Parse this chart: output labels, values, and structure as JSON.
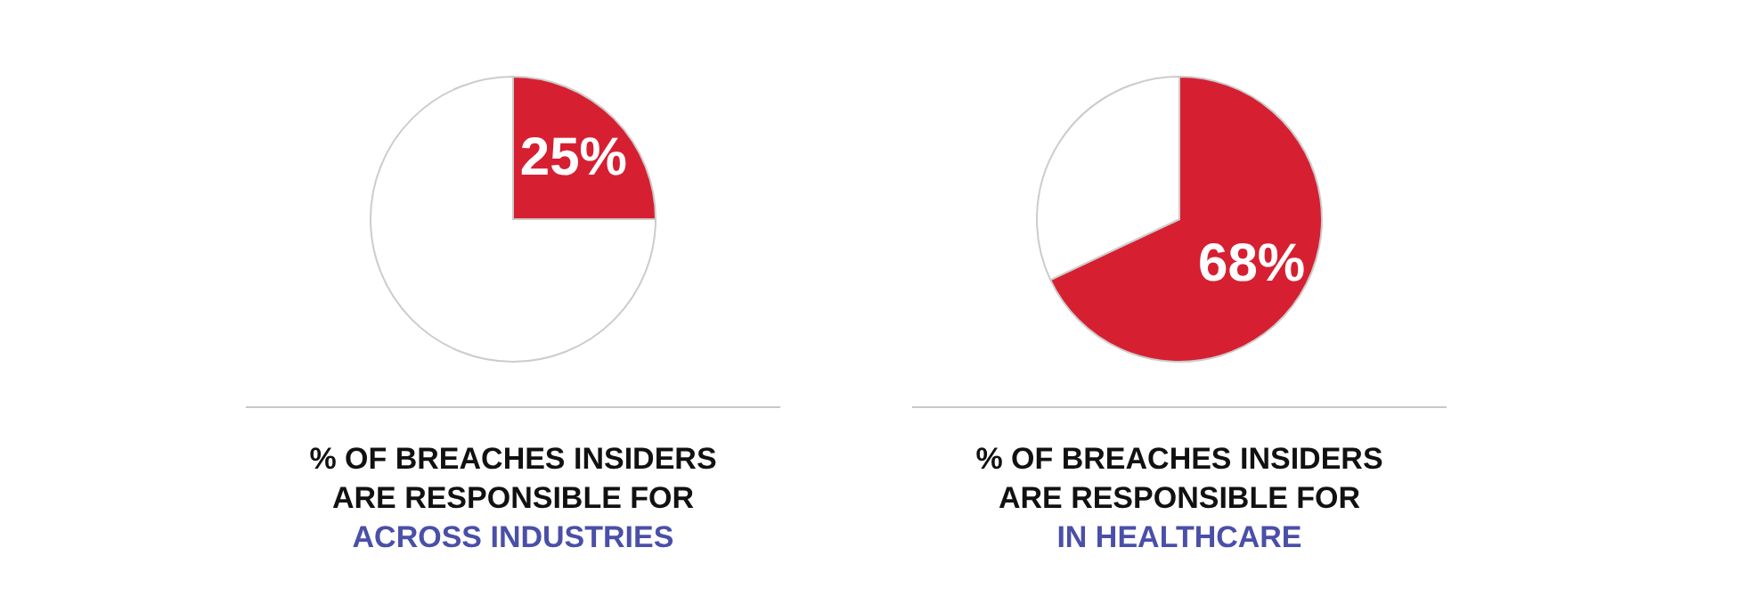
{
  "chart_data": [
    {
      "type": "pie",
      "categories": [
        null,
        null
      ],
      "values": [
        25,
        75
      ],
      "colors": [
        "#d62032",
        "#ffffff"
      ],
      "value_labels": [
        "25%",
        null
      ],
      "title": "% OF BREACHES INSIDERS ARE RESPONSIBLE FOR",
      "subtitle": "ACROSS INDUSTRIES"
    },
    {
      "type": "pie",
      "categories": [
        null,
        null
      ],
      "values": [
        68,
        32
      ],
      "colors": [
        "#d62032",
        "#ffffff"
      ],
      "value_labels": [
        "68%",
        null
      ],
      "title": "% OF BREACHES INSIDERS ARE RESPONSIBLE FOR",
      "subtitle": "IN HEALTHCARE"
    }
  ]
}
